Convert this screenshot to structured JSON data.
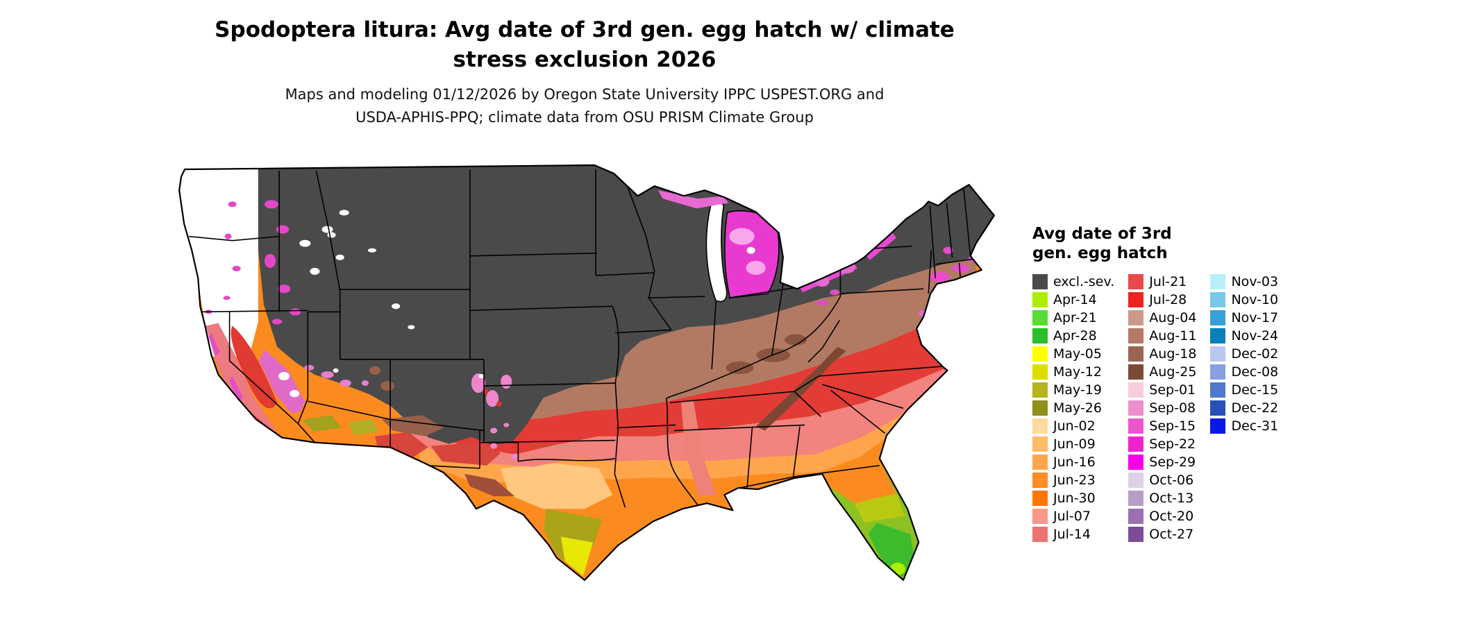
{
  "title": {
    "line1": "Spodoptera litura: Avg date of 3rd gen. egg hatch w/ climate",
    "line2": "stress exclusion 2026"
  },
  "subtitle": {
    "line1": "Maps and modeling 01/12/2026 by Oregon State University IPPC USPEST.ORG and",
    "line2": "USDA-APHIS-PPQ; climate data from OSU PRISM Climate Group"
  },
  "legend": {
    "title_line1": "Avg date of 3rd",
    "title_line2": "gen. egg hatch",
    "columns": [
      [
        {
          "label": "excl.-sev.",
          "color": "#4a4a4a"
        },
        {
          "label": "Apr-14",
          "color": "#aaee00"
        },
        {
          "label": "Apr-21",
          "color": "#55dd33"
        },
        {
          "label": "Apr-28",
          "color": "#2abf2a"
        },
        {
          "label": "May-05",
          "color": "#ffff00"
        },
        {
          "label": "May-12",
          "color": "#dddd00"
        },
        {
          "label": "May-19",
          "color": "#b5b520"
        },
        {
          "label": "May-26",
          "color": "#8f8f1a"
        },
        {
          "label": "Jun-02",
          "color": "#ffd9a0"
        },
        {
          "label": "Jun-09",
          "color": "#ffbb66"
        },
        {
          "label": "Jun-16",
          "color": "#ffa64d"
        },
        {
          "label": "Jun-23",
          "color": "#ff8c26"
        },
        {
          "label": "Jun-30",
          "color": "#ff7700"
        },
        {
          "label": "Jul-07",
          "color": "#f89888"
        },
        {
          "label": "Jul-14",
          "color": "#ef7272"
        }
      ],
      [
        {
          "label": "Jul-21",
          "color": "#e84a4a"
        },
        {
          "label": "Jul-28",
          "color": "#ee2222"
        },
        {
          "label": "Aug-04",
          "color": "#cc9988"
        },
        {
          "label": "Aug-11",
          "color": "#b87868"
        },
        {
          "label": "Aug-18",
          "color": "#9a6452"
        },
        {
          "label": "Aug-25",
          "color": "#7e4a38"
        },
        {
          "label": "Sep-01",
          "color": "#f8ccd8"
        },
        {
          "label": "Sep-08",
          "color": "#ee8fcc"
        },
        {
          "label": "Sep-15",
          "color": "#ee55cc"
        },
        {
          "label": "Sep-22",
          "color": "#ee22cc"
        },
        {
          "label": "Sep-29",
          "color": "#f400e8"
        },
        {
          "label": "Oct-06",
          "color": "#ded0e8"
        },
        {
          "label": "Oct-13",
          "color": "#b89cc8"
        },
        {
          "label": "Oct-20",
          "color": "#9a70b0"
        },
        {
          "label": "Oct-27",
          "color": "#7c4c98"
        }
      ],
      [
        {
          "label": "Nov-03",
          "color": "#b8eef8"
        },
        {
          "label": "Nov-10",
          "color": "#78c8e8"
        },
        {
          "label": "Nov-17",
          "color": "#38a0d8"
        },
        {
          "label": "Nov-24",
          "color": "#0880b8"
        },
        {
          "label": "Dec-02",
          "color": "#b8c8f0"
        },
        {
          "label": "Dec-08",
          "color": "#88a0e0"
        },
        {
          "label": "Dec-15",
          "color": "#5078cc"
        },
        {
          "label": "Dec-22",
          "color": "#2850b8"
        },
        {
          "label": "Dec-31",
          "color": "#0818e8"
        }
      ]
    ]
  },
  "map_colors": {
    "excluded_severe": "#4a4a4a",
    "background": "#ffffff",
    "state_border": "#000000"
  }
}
